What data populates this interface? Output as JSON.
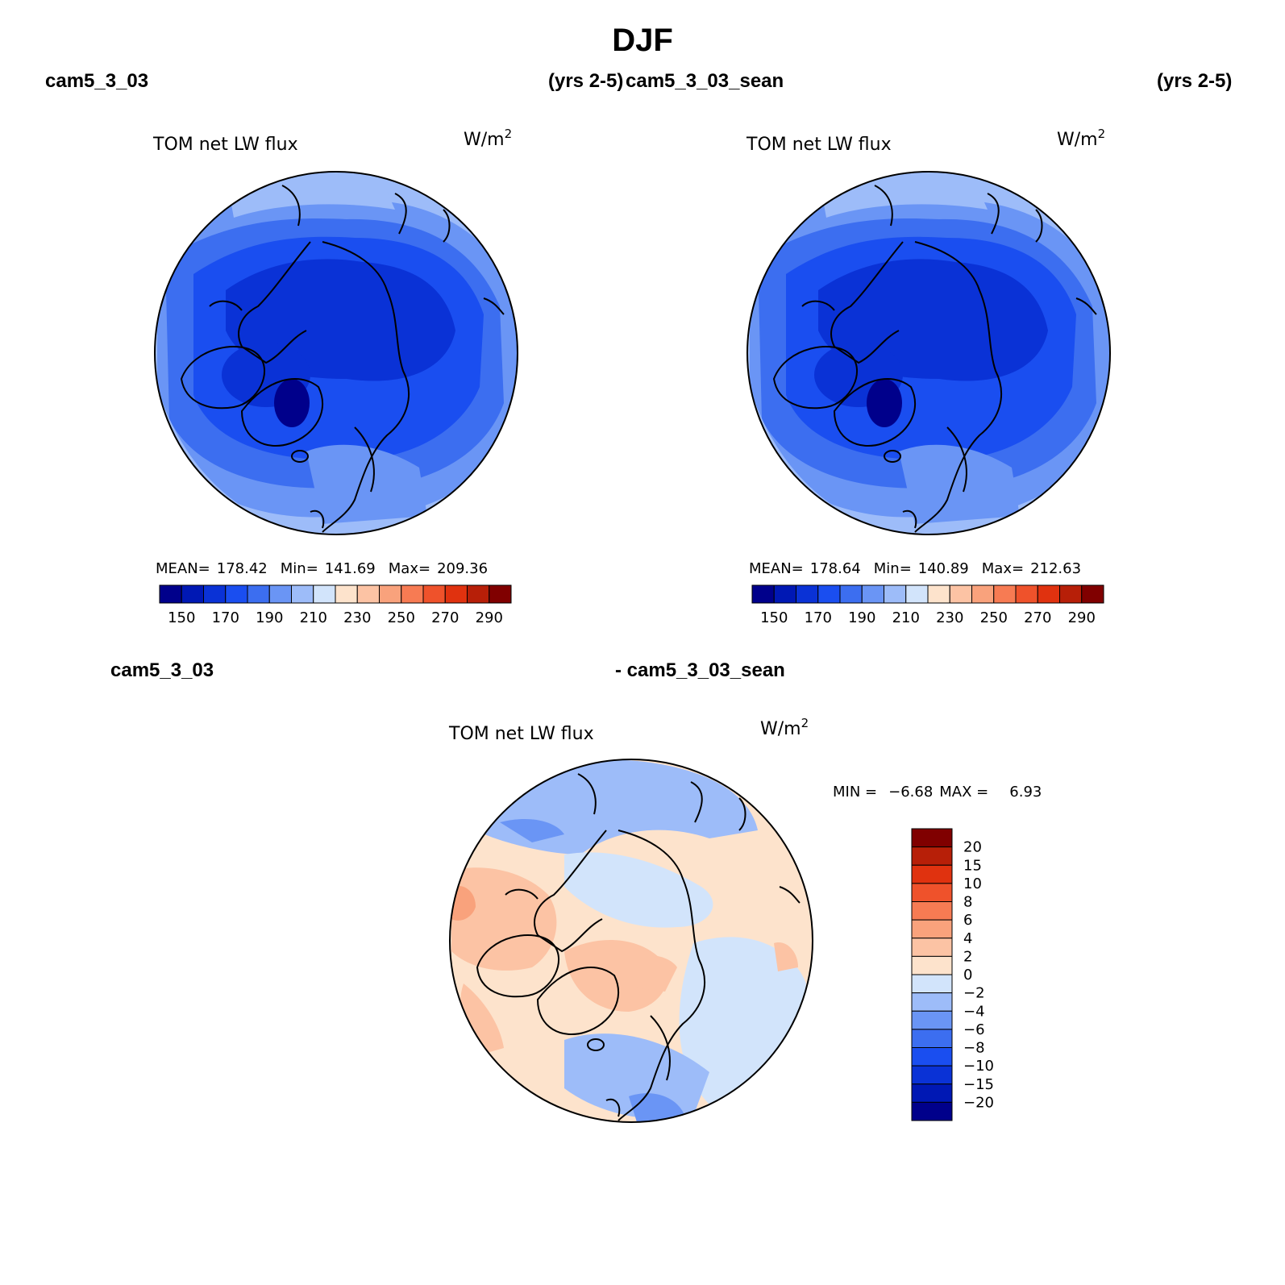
{
  "title": "DJF",
  "panels": [
    {
      "case_name": "cam5_3_03",
      "years": "(yrs 2-5)",
      "variable": "TOM net LW flux",
      "units": "W/m",
      "units_exp": "2",
      "stats": {
        "mean_label": "MEAN=",
        "mean": "178.42",
        "min_label": "Min=",
        "min": "141.69",
        "max_label": "Max=",
        "max": "209.36"
      }
    },
    {
      "case_name": "cam5_3_03_sean",
      "years": "(yrs 2-5)",
      "variable": "TOM net LW flux",
      "units": "W/m",
      "units_exp": "2",
      "stats": {
        "mean_label": "MEAN=",
        "mean": "178.64",
        "min_label": "Min=",
        "min": "140.89",
        "max_label": "Max=",
        "max": "212.63"
      }
    }
  ],
  "diff_panel": {
    "case_a": "cam5_3_03",
    "case_b": "- cam5_3_03_sean",
    "variable": "TOM net LW flux",
    "units": "W/m",
    "units_exp": "2",
    "stats": {
      "min_label": "MIN =",
      "min": "−6.68",
      "max_label": "MAX =",
      "max": "6.93"
    }
  },
  "colorbar_abs": {
    "levels": [
      "150",
      "170",
      "190",
      "210",
      "230",
      "250",
      "270",
      "290"
    ],
    "colors": [
      "#00008b",
      "#0018b4",
      "#0a32d6",
      "#1a4ef0",
      "#3c6ef0",
      "#6a95f5",
      "#9dbcf9",
      "#d2e4fb",
      "#fde3cc",
      "#fcc3a4",
      "#f9a27c",
      "#f77b53",
      "#ef522b",
      "#e0320f",
      "#b71f08",
      "#800000"
    ]
  },
  "colorbar_diff": {
    "levels": [
      "20",
      "15",
      "10",
      "8",
      "6",
      "4",
      "2",
      "0",
      "−2",
      "−4",
      "−6",
      "−8",
      "−10",
      "−15",
      "−20"
    ],
    "colors": [
      "#800000",
      "#b71f08",
      "#e0320f",
      "#ef522b",
      "#f77b53",
      "#f9a27c",
      "#fcc3a4",
      "#fde3cc",
      "#d2e4fb",
      "#9dbcf9",
      "#6a95f5",
      "#3c6ef0",
      "#1a4ef0",
      "#0a32d6",
      "#0018b4",
      "#00008b"
    ]
  },
  "map_colors": {
    "outer": "#9dbcf9",
    "ring": "#6a95f5",
    "mid": "#3c6ef0",
    "inner": "#1a4ef0",
    "deep": "#0a32d6",
    "darkest": "#00008b",
    "diff_base": "#fde3cc",
    "diff_light_blue": "#d2e4fb",
    "diff_blue": "#9dbcf9",
    "diff_mid_blue": "#6a95f5",
    "diff_orange": "#fcc3a4",
    "diff_strong_orange": "#f9a27c"
  }
}
